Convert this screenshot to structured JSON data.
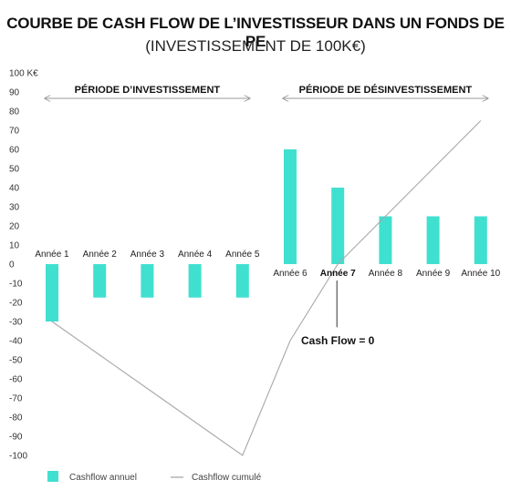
{
  "title": "COURBE DE CASH FLOW DE L’INVESTISSEUR DANS UN FONDS DE PE",
  "subtitle": "(INVESTISSEMENT DE 100K€)",
  "colors": {
    "bar": "#40E0D0",
    "line": "#a8a8a8",
    "arrow": "#9a9a9a",
    "annotation": "#333333"
  },
  "chart_data": {
    "type": "bar",
    "categories": [
      "Année 1",
      "Année 2",
      "Année 3",
      "Année 4",
      "Année 5",
      "Année 6",
      "Année 7",
      "Année 8",
      "Année 9",
      "Année 10"
    ],
    "highlighted_category": "Année 7",
    "ylim": [
      -100,
      100
    ],
    "y_ticks": [
      100,
      90,
      80,
      70,
      60,
      50,
      40,
      30,
      20,
      10,
      0,
      -10,
      -20,
      -30,
      -40,
      -50,
      -60,
      -70,
      -80,
      -90,
      -100
    ],
    "y_top_label": "100 K€",
    "series": [
      {
        "name": "Cashflow annuel",
        "type": "bar",
        "values": [
          -30,
          -17.5,
          -17.5,
          -17.5,
          -17.5,
          60,
          40,
          25,
          25,
          25
        ]
      },
      {
        "name": "Cashflow cumulé",
        "type": "line",
        "values": [
          -30,
          -47.5,
          -65,
          -82.5,
          -100,
          -40,
          0,
          25,
          50,
          75
        ]
      }
    ],
    "periods": [
      {
        "label": "PÉRIODE D’INVESTISSEMENT",
        "from": "Année 1",
        "to": "Année 5"
      },
      {
        "label": "PÉRIODE DE DÉSINVESTISSEMENT",
        "from": "Année 6",
        "to": "Année 10"
      }
    ],
    "annotation": {
      "label": "Cash Flow = 0",
      "category": "Année 7",
      "value": 0
    },
    "legend_position": "bottom-left"
  }
}
